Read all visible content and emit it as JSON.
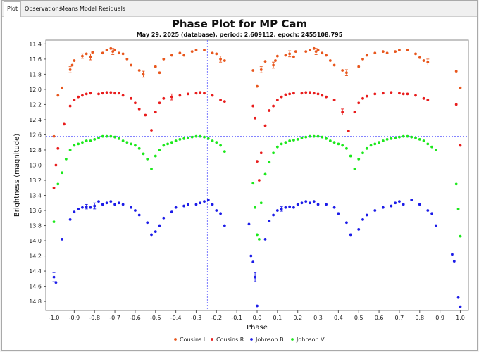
{
  "tabs": [
    {
      "label": "Plot",
      "active": true
    },
    {
      "label": "Observations",
      "active": false
    },
    {
      "label": "Means",
      "active": false
    },
    {
      "label": "Model",
      "active": false
    },
    {
      "label": "Residuals",
      "active": false
    }
  ],
  "chart_data": {
    "type": "scatter",
    "title": "Phase Plot for MP Cam",
    "subtitle": "May 29, 2025 (database), period: 2.609112, epoch: 2455108.795",
    "xlabel": "Phase",
    "ylabel": "Brightness (magnitude)",
    "xlim": [
      -1.04,
      1.04
    ],
    "ylim": [
      14.92,
      11.35
    ],
    "y_inverted": true,
    "xticks": [
      -1.0,
      -0.9,
      -0.8,
      -0.7,
      -0.6,
      -0.5,
      -0.4,
      -0.3,
      -0.2,
      -0.1,
      0.0,
      0.1,
      0.2,
      0.3,
      0.4,
      0.5,
      0.6,
      0.7,
      0.8,
      0.9,
      1.0
    ],
    "yticks": [
      11.4,
      11.6,
      11.8,
      12.0,
      12.2,
      12.4,
      12.6,
      12.8,
      13.0,
      13.2,
      13.4,
      13.6,
      13.8,
      14.0,
      14.2,
      14.4,
      14.6,
      14.8
    ],
    "crosshair": {
      "x": -0.245,
      "y": 12.62
    },
    "legend_position": "bottom",
    "series": [
      {
        "name": "Cousins I",
        "color": "#e8561c",
        "x": [
          -1.0,
          -0.98,
          -0.96,
          -0.92,
          -0.91,
          -0.9,
          -0.86,
          -0.84,
          -0.82,
          -0.81,
          -0.76,
          -0.74,
          -0.72,
          -0.71,
          -0.7,
          -0.68,
          -0.66,
          -0.64,
          -0.62,
          -0.58,
          -0.56,
          -0.5,
          -0.48,
          -0.46,
          -0.42,
          -0.38,
          -0.36,
          -0.32,
          -0.3,
          -0.26,
          -0.22,
          -0.2,
          -0.18,
          -0.16,
          -0.02,
          0.0,
          0.02,
          0.04,
          0.08,
          0.09,
          0.1,
          0.14,
          0.16,
          0.18,
          0.19,
          0.24,
          0.26,
          0.28,
          0.29,
          0.3,
          0.32,
          0.34,
          0.36,
          0.38,
          0.42,
          0.44,
          0.5,
          0.52,
          0.54,
          0.58,
          0.62,
          0.64,
          0.68,
          0.7,
          0.74,
          0.78,
          0.8,
          0.82,
          0.84,
          0.98,
          1.0
        ],
        "y": [
          12.62,
          12.08,
          11.98,
          11.74,
          11.68,
          11.62,
          11.56,
          11.53,
          11.57,
          11.51,
          11.52,
          11.48,
          11.46,
          11.5,
          11.48,
          11.52,
          11.53,
          11.6,
          11.68,
          11.75,
          11.8,
          11.7,
          11.78,
          11.6,
          11.55,
          11.52,
          11.55,
          11.5,
          11.48,
          11.48,
          11.52,
          11.53,
          11.6,
          11.62,
          11.75,
          11.96,
          11.74,
          11.63,
          11.68,
          11.62,
          11.56,
          11.55,
          11.53,
          11.57,
          11.5,
          11.5,
          11.48,
          11.46,
          11.5,
          11.48,
          11.52,
          11.55,
          11.62,
          11.68,
          11.75,
          11.78,
          11.7,
          11.6,
          11.55,
          11.52,
          11.5,
          11.52,
          11.5,
          11.48,
          11.48,
          11.53,
          11.58,
          11.62,
          11.64,
          11.76,
          11.98
        ],
        "errors": [
          0,
          0,
          0,
          0.04,
          0,
          0,
          0.03,
          0,
          0.04,
          0,
          0,
          0,
          0,
          0.04,
          0,
          0,
          0,
          0,
          0,
          0,
          0.04,
          0,
          0,
          0,
          0,
          0,
          0,
          0,
          0,
          0,
          0,
          0,
          0.04,
          0,
          0,
          0,
          0.04,
          0,
          0.04,
          0,
          0,
          0,
          0.04,
          0,
          0,
          0,
          0,
          0,
          0.04,
          0,
          0,
          0,
          0,
          0,
          0,
          0.04,
          0,
          0,
          0,
          0,
          0,
          0,
          0,
          0,
          0,
          0,
          0,
          0,
          0.04,
          0,
          0
        ]
      },
      {
        "name": "Cousins R",
        "color": "#e81c1c",
        "x": [
          -1.0,
          -0.99,
          -0.98,
          -0.95,
          -0.92,
          -0.9,
          -0.88,
          -0.86,
          -0.84,
          -0.82,
          -0.78,
          -0.76,
          -0.74,
          -0.72,
          -0.7,
          -0.68,
          -0.66,
          -0.62,
          -0.6,
          -0.58,
          -0.55,
          -0.52,
          -0.5,
          -0.48,
          -0.46,
          -0.42,
          -0.38,
          -0.34,
          -0.3,
          -0.28,
          -0.26,
          -0.22,
          -0.18,
          -0.16,
          -0.02,
          -0.01,
          0.0,
          0.01,
          0.02,
          0.04,
          0.06,
          0.08,
          0.1,
          0.12,
          0.14,
          0.16,
          0.18,
          0.22,
          0.24,
          0.26,
          0.28,
          0.3,
          0.32,
          0.34,
          0.38,
          0.42,
          0.45,
          0.48,
          0.5,
          0.52,
          0.54,
          0.58,
          0.62,
          0.66,
          0.7,
          0.72,
          0.74,
          0.78,
          0.82,
          0.84,
          0.98,
          1.0
        ],
        "y": [
          13.3,
          13.0,
          12.78,
          12.46,
          12.22,
          12.14,
          12.1,
          12.08,
          12.06,
          12.05,
          12.06,
          12.05,
          12.04,
          12.04,
          12.05,
          12.05,
          12.08,
          12.12,
          12.18,
          12.26,
          12.34,
          12.54,
          12.3,
          12.18,
          12.12,
          12.1,
          12.08,
          12.06,
          12.05,
          12.04,
          12.05,
          12.08,
          12.14,
          12.16,
          12.22,
          12.38,
          12.95,
          13.2,
          12.84,
          12.48,
          12.28,
          12.22,
          12.14,
          12.1,
          12.07,
          12.06,
          12.05,
          12.05,
          12.04,
          12.04,
          12.05,
          12.06,
          12.08,
          12.1,
          12.14,
          12.3,
          12.55,
          12.3,
          12.18,
          12.12,
          12.09,
          12.06,
          12.05,
          12.04,
          12.05,
          12.06,
          12.06,
          12.08,
          12.12,
          12.14,
          12.2,
          12.74
        ],
        "errors": [
          0,
          0,
          0,
          0,
          0,
          0,
          0,
          0,
          0,
          0,
          0,
          0,
          0,
          0,
          0,
          0,
          0,
          0,
          0,
          0,
          0,
          0,
          0,
          0,
          0,
          0.04,
          0,
          0,
          0,
          0,
          0,
          0,
          0,
          0,
          0,
          0,
          0,
          0,
          0,
          0,
          0,
          0,
          0,
          0,
          0,
          0,
          0,
          0,
          0,
          0,
          0,
          0,
          0,
          0,
          0,
          0.04,
          0,
          0,
          0,
          0,
          0,
          0,
          0,
          0,
          0,
          0,
          0,
          0,
          0,
          0,
          0,
          0
        ]
      },
      {
        "name": "Johnson B",
        "color": "#1c1ce8",
        "x": [
          -1.0,
          -0.99,
          -0.96,
          -0.92,
          -0.9,
          -0.88,
          -0.86,
          -0.84,
          -0.82,
          -0.8,
          -0.78,
          -0.76,
          -0.74,
          -0.72,
          -0.7,
          -0.68,
          -0.66,
          -0.62,
          -0.6,
          -0.58,
          -0.54,
          -0.52,
          -0.5,
          -0.48,
          -0.46,
          -0.42,
          -0.4,
          -0.36,
          -0.34,
          -0.3,
          -0.28,
          -0.26,
          -0.24,
          -0.22,
          -0.2,
          -0.18,
          -0.16,
          -0.04,
          -0.03,
          -0.02,
          -0.01,
          0.0,
          0.04,
          0.06,
          0.08,
          0.1,
          0.12,
          0.14,
          0.16,
          0.18,
          0.2,
          0.22,
          0.24,
          0.26,
          0.28,
          0.3,
          0.34,
          0.38,
          0.4,
          0.44,
          0.46,
          0.5,
          0.52,
          0.54,
          0.58,
          0.62,
          0.66,
          0.68,
          0.7,
          0.72,
          0.76,
          0.8,
          0.84,
          0.86,
          0.88,
          0.96,
          0.97,
          0.99,
          1.0
        ],
        "y": [
          14.48,
          14.55,
          13.98,
          13.72,
          13.62,
          13.58,
          13.56,
          13.55,
          13.56,
          13.54,
          13.48,
          13.52,
          13.5,
          13.48,
          13.52,
          13.5,
          13.52,
          13.56,
          13.6,
          13.66,
          13.76,
          13.92,
          13.88,
          13.8,
          13.7,
          13.62,
          13.56,
          13.54,
          13.52,
          13.52,
          13.5,
          13.48,
          13.46,
          13.52,
          13.6,
          13.64,
          13.8,
          13.78,
          14.2,
          14.28,
          14.48,
          14.86,
          13.98,
          13.74,
          13.66,
          13.6,
          13.58,
          13.56,
          13.55,
          13.56,
          13.52,
          13.5,
          13.48,
          13.5,
          13.48,
          13.52,
          13.52,
          13.56,
          13.64,
          13.76,
          13.92,
          13.85,
          13.72,
          13.66,
          13.6,
          13.56,
          13.54,
          13.5,
          13.48,
          13.52,
          13.46,
          13.52,
          13.6,
          13.64,
          13.8,
          14.18,
          14.27,
          14.75,
          14.87
        ],
        "errors": [
          0.06,
          0,
          0,
          0,
          0,
          0,
          0,
          0.03,
          0,
          0.04,
          0,
          0,
          0,
          0,
          0,
          0,
          0,
          0,
          0,
          0,
          0,
          0,
          0,
          0,
          0,
          0,
          0,
          0,
          0,
          0,
          0,
          0,
          0,
          0,
          0,
          0,
          0,
          0,
          0,
          0,
          0.06,
          0,
          0,
          0,
          0,
          0,
          0.03,
          0,
          0,
          0,
          0,
          0,
          0,
          0,
          0,
          0,
          0,
          0,
          0,
          0,
          0,
          0,
          0,
          0,
          0,
          0,
          0,
          0,
          0,
          0,
          0,
          0,
          0,
          0,
          0,
          0,
          0,
          0,
          0
        ]
      },
      {
        "name": "Johnson V",
        "color": "#1ce81c",
        "x": [
          -1.0,
          -0.98,
          -0.96,
          -0.94,
          -0.92,
          -0.9,
          -0.88,
          -0.86,
          -0.84,
          -0.82,
          -0.8,
          -0.78,
          -0.76,
          -0.74,
          -0.72,
          -0.7,
          -0.68,
          -0.66,
          -0.64,
          -0.62,
          -0.6,
          -0.58,
          -0.56,
          -0.54,
          -0.52,
          -0.5,
          -0.48,
          -0.46,
          -0.44,
          -0.42,
          -0.4,
          -0.38,
          -0.36,
          -0.34,
          -0.32,
          -0.3,
          -0.28,
          -0.26,
          -0.24,
          -0.22,
          -0.2,
          -0.18,
          -0.16,
          -0.02,
          -0.01,
          0.0,
          0.01,
          0.02,
          0.04,
          0.06,
          0.08,
          0.1,
          0.12,
          0.14,
          0.16,
          0.18,
          0.2,
          0.22,
          0.24,
          0.26,
          0.28,
          0.3,
          0.32,
          0.34,
          0.36,
          0.38,
          0.4,
          0.42,
          0.44,
          0.46,
          0.48,
          0.5,
          0.52,
          0.54,
          0.56,
          0.58,
          0.6,
          0.62,
          0.64,
          0.66,
          0.68,
          0.7,
          0.72,
          0.74,
          0.76,
          0.78,
          0.8,
          0.82,
          0.84,
          0.86,
          0.88,
          0.98,
          0.99,
          1.0
        ],
        "y": [
          13.75,
          13.25,
          13.1,
          12.92,
          12.8,
          12.74,
          12.72,
          12.7,
          12.68,
          12.68,
          12.66,
          12.64,
          12.62,
          12.62,
          12.62,
          12.63,
          12.65,
          12.68,
          12.7,
          12.72,
          12.74,
          12.78,
          12.85,
          12.92,
          13.05,
          12.88,
          12.8,
          12.74,
          12.72,
          12.7,
          12.68,
          12.66,
          12.65,
          12.64,
          12.63,
          12.62,
          12.62,
          12.63,
          12.65,
          12.68,
          12.7,
          12.74,
          12.82,
          13.24,
          13.56,
          13.92,
          13.98,
          13.5,
          13.12,
          12.96,
          12.84,
          12.76,
          12.72,
          12.7,
          12.68,
          12.67,
          12.66,
          12.64,
          12.63,
          12.62,
          12.62,
          12.62,
          12.63,
          12.65,
          12.68,
          12.7,
          12.72,
          12.74,
          12.78,
          12.88,
          13.05,
          12.92,
          12.84,
          12.78,
          12.74,
          12.72,
          12.7,
          12.68,
          12.66,
          12.65,
          12.64,
          12.63,
          12.62,
          12.62,
          12.63,
          12.64,
          12.66,
          12.68,
          12.72,
          12.76,
          12.8,
          13.25,
          13.58,
          13.94
        ],
        "errors": [
          0,
          0,
          0,
          0,
          0,
          0,
          0,
          0,
          0,
          0,
          0,
          0,
          0,
          0,
          0,
          0,
          0,
          0,
          0,
          0,
          0,
          0,
          0,
          0,
          0,
          0,
          0,
          0,
          0,
          0,
          0,
          0,
          0,
          0,
          0,
          0,
          0,
          0,
          0,
          0,
          0,
          0,
          0,
          0,
          0,
          0,
          0,
          0,
          0,
          0,
          0,
          0,
          0,
          0,
          0,
          0,
          0,
          0,
          0,
          0,
          0,
          0,
          0,
          0,
          0,
          0,
          0,
          0,
          0,
          0,
          0,
          0,
          0,
          0,
          0,
          0,
          0,
          0,
          0,
          0,
          0,
          0,
          0,
          0,
          0,
          0,
          0,
          0,
          0,
          0,
          0,
          0,
          0,
          0
        ]
      }
    ]
  }
}
